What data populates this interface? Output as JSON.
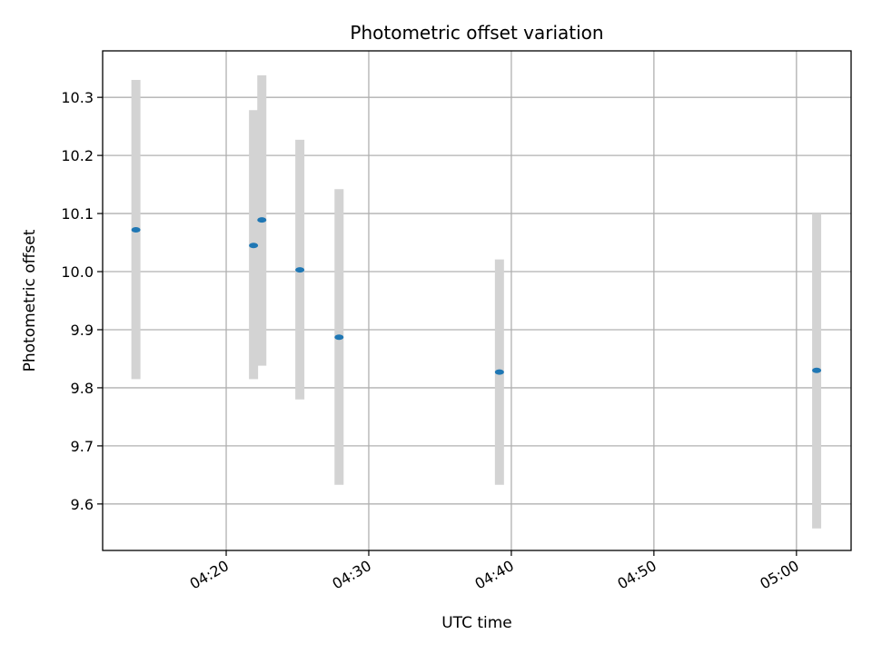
{
  "chart_data": {
    "type": "scatter",
    "title": "Photometric offset variation",
    "xlabel": "UTC time",
    "ylabel": "Photometric offset",
    "x_axis": {
      "kind": "time",
      "range": [
        "04:11:20",
        "05:03:50"
      ],
      "ticks": [
        "04:20",
        "04:30",
        "04:40",
        "04:50",
        "05:00"
      ]
    },
    "y_axis": {
      "range": [
        9.52,
        10.38
      ],
      "ticks": [
        "9.6",
        "9.7",
        "9.8",
        "9.9",
        "10.0",
        "10.1",
        "10.2",
        "10.3"
      ]
    },
    "grid": true,
    "error_bar_color": "#d3d3d3",
    "point_color": "#1f77b4",
    "points": [
      {
        "x": "04:13:40",
        "y": 10.072,
        "err_low": 9.815,
        "err_high": 10.33
      },
      {
        "x": "04:21:55",
        "y": 10.045,
        "err_low": 9.815,
        "err_high": 10.278
      },
      {
        "x": "04:22:30",
        "y": 10.089,
        "err_low": 9.838,
        "err_high": 10.338
      },
      {
        "x": "04:25:10",
        "y": 10.003,
        "err_low": 9.78,
        "err_high": 10.227
      },
      {
        "x": "04:27:55",
        "y": 9.887,
        "err_low": 9.633,
        "err_high": 10.142
      },
      {
        "x": "04:39:10",
        "y": 9.827,
        "err_low": 9.633,
        "err_high": 10.021
      },
      {
        "x": "05:01:25",
        "y": 9.83,
        "err_low": 9.558,
        "err_high": 10.1
      }
    ]
  }
}
